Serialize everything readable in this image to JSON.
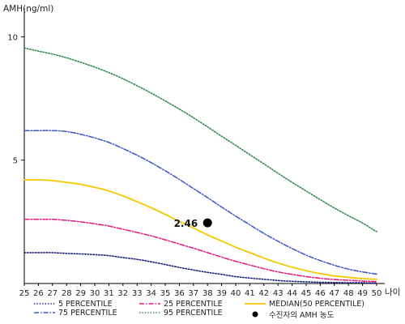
{
  "chart_data": {
    "type": "line",
    "ylabel": "AMH(ng/ml)",
    "xlabel": "나이",
    "x": [
      25,
      26,
      27,
      28,
      29,
      30,
      31,
      32,
      33,
      34,
      35,
      36,
      37,
      38,
      39,
      40,
      41,
      42,
      43,
      44,
      45,
      46,
      47,
      48,
      49,
      50
    ],
    "y_ticks": [
      5,
      10
    ],
    "xlim": [
      25,
      50
    ],
    "ylim": [
      0,
      11
    ],
    "grid": false,
    "legend_position": "bottom",
    "series": [
      {
        "name": "5 PERCENTILE",
        "style": "dotted",
        "color": "#1a1f7a",
        "values": [
          1.25,
          1.25,
          1.25,
          1.22,
          1.2,
          1.17,
          1.13,
          1.05,
          0.98,
          0.88,
          0.77,
          0.65,
          0.55,
          0.45,
          0.37,
          0.28,
          0.22,
          0.17,
          0.12,
          0.09,
          0.07,
          0.05,
          0.04,
          0.03,
          0.03,
          0.02
        ]
      },
      {
        "name": "25 PERCENTILE",
        "style": "dashdot",
        "color": "#e0187f",
        "values": [
          2.6,
          2.6,
          2.6,
          2.56,
          2.5,
          2.42,
          2.33,
          2.2,
          2.07,
          1.93,
          1.77,
          1.6,
          1.43,
          1.25,
          1.07,
          0.9,
          0.75,
          0.6,
          0.47,
          0.37,
          0.28,
          0.21,
          0.16,
          0.13,
          0.1,
          0.08
        ]
      },
      {
        "name": "MEDIAN(50 PERCENTILE)",
        "style": "solid",
        "color": "#f5c800",
        "values": [
          4.2,
          4.2,
          4.17,
          4.1,
          4.02,
          3.9,
          3.75,
          3.55,
          3.32,
          3.07,
          2.8,
          2.52,
          2.25,
          1.97,
          1.72,
          1.47,
          1.25,
          1.03,
          0.83,
          0.66,
          0.52,
          0.4,
          0.31,
          0.25,
          0.2,
          0.17
        ]
      },
      {
        "name": "75 PERCENTILE",
        "style": "dashdot",
        "color": "#3a55c8",
        "values": [
          6.2,
          6.2,
          6.2,
          6.16,
          6.05,
          5.9,
          5.72,
          5.47,
          5.2,
          4.9,
          4.57,
          4.22,
          3.85,
          3.48,
          3.1,
          2.73,
          2.38,
          2.03,
          1.71,
          1.42,
          1.15,
          0.93,
          0.74,
          0.58,
          0.47,
          0.38
        ]
      },
      {
        "name": "95 PERCENTILE",
        "style": "dotted",
        "color": "#2f8a4e",
        "values": [
          9.55,
          9.42,
          9.3,
          9.15,
          8.97,
          8.77,
          8.55,
          8.3,
          8.02,
          7.72,
          7.4,
          7.07,
          6.72,
          6.35,
          5.97,
          5.6,
          5.22,
          4.85,
          4.47,
          4.1,
          3.75,
          3.4,
          3.06,
          2.75,
          2.45,
          2.1
        ]
      }
    ],
    "marker": {
      "label": "수진자의 AMH 농도",
      "x": 38,
      "y": 2.46,
      "text": "2.46",
      "color": "#000000"
    }
  }
}
